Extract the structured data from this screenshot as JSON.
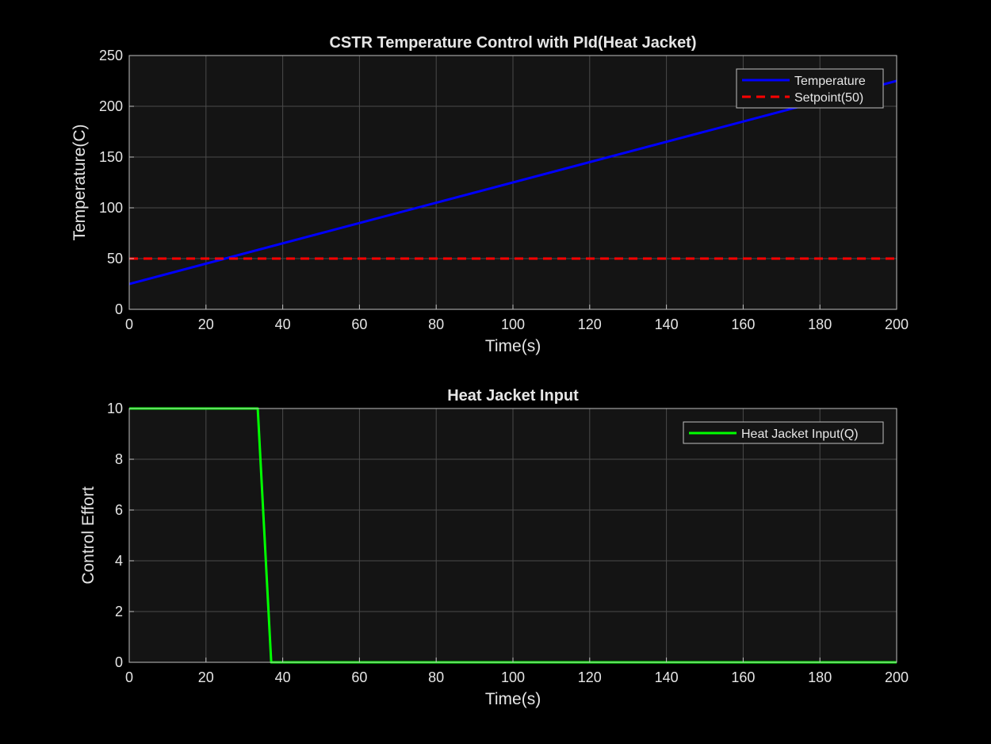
{
  "figure": {
    "background": "#000000",
    "axes_background": "#141414",
    "grid_color": "#4a4a4a",
    "axis_color": "#bfbfbf",
    "text_color": "#e6e6e6"
  },
  "chart_data": [
    {
      "type": "line",
      "title": "CSTR Temperature Control with PId(Heat Jacket)",
      "xlabel": "Time(s)",
      "ylabel": "Temperature(C)",
      "xlim": [
        0,
        200
      ],
      "ylim": [
        0,
        250
      ],
      "xticks": [
        0,
        20,
        40,
        60,
        80,
        100,
        120,
        140,
        160,
        180,
        200
      ],
      "yticks": [
        0,
        50,
        100,
        150,
        200,
        250
      ],
      "xtick_labels": [
        "0",
        "20",
        "40",
        "60",
        "80",
        "100",
        "120",
        "140",
        "160",
        "180",
        "200"
      ],
      "ytick_labels": [
        "0",
        "50",
        "100",
        "150",
        "200",
        "250"
      ],
      "grid": true,
      "legend_position": "top-right",
      "series": [
        {
          "name": "Temperature",
          "color": "#0000ff",
          "style": "solid",
          "x": [
            0,
            200
          ],
          "y": [
            25,
            225
          ]
        },
        {
          "name": "Setpoint(50)",
          "color": "#ff0000",
          "style": "dashed",
          "x": [
            0,
            200
          ],
          "y": [
            50,
            50
          ]
        }
      ]
    },
    {
      "type": "line",
      "title": "Heat Jacket Input",
      "xlabel": "Time(s)",
      "ylabel": "Control Effort",
      "xlim": [
        0,
        200
      ],
      "ylim": [
        0,
        10
      ],
      "xticks": [
        0,
        20,
        40,
        60,
        80,
        100,
        120,
        140,
        160,
        180,
        200
      ],
      "yticks": [
        0,
        2,
        4,
        6,
        8,
        10
      ],
      "xtick_labels": [
        "0",
        "20",
        "40",
        "60",
        "80",
        "100",
        "120",
        "140",
        "160",
        "180",
        "200"
      ],
      "ytick_labels": [
        "0",
        "2",
        "4",
        "6",
        "8",
        "10"
      ],
      "grid": true,
      "legend_position": "top-right",
      "series": [
        {
          "name": "Heat Jacket Input(Q)",
          "color": "#00ff00",
          "style": "solid",
          "x": [
            0,
            33.5,
            37,
            200
          ],
          "y": [
            10,
            10,
            0,
            0
          ]
        }
      ]
    }
  ]
}
